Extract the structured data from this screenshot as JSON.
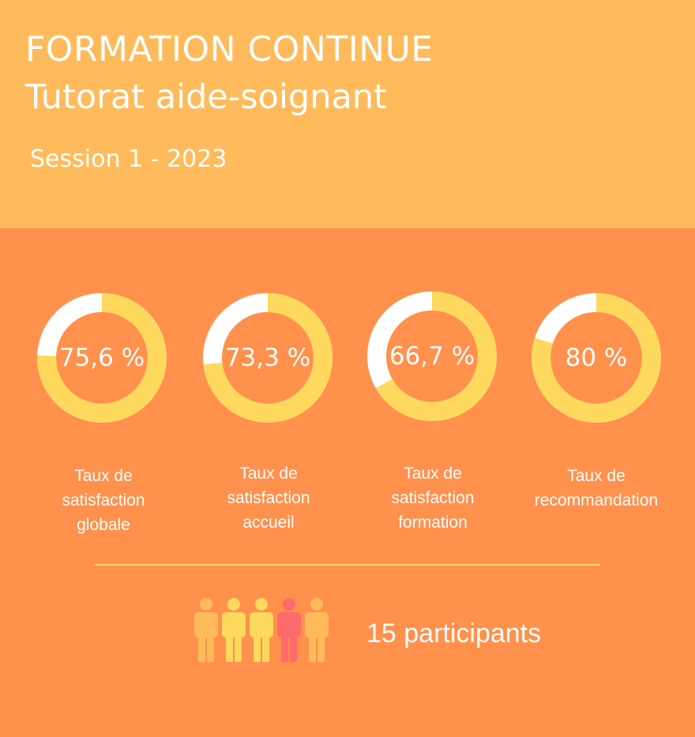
{
  "header": {
    "title": "FORMATION CONTINUE",
    "subtitle": "Tutorat aide-soignant",
    "session": "Session 1 - 2023"
  },
  "colors": {
    "header_bg": "#FFBB5B",
    "body_bg": "#FF914D",
    "ring_fill": "#FFD95E",
    "ring_rest": "#FFFFFF",
    "person_orange": "#FFBB5B",
    "person_yellow": "#FFD95E",
    "person_pink": "#FF6B6B"
  },
  "chart_data": {
    "type": "pie",
    "variant": "donut",
    "series": [
      {
        "value": 75.6,
        "display": "75,6 %",
        "label_lines": [
          "Taux de",
          "satisfaction",
          "globale"
        ]
      },
      {
        "value": 73.3,
        "display": "73,3 %",
        "label_lines": [
          "Taux de",
          "satisfaction",
          "accueil"
        ]
      },
      {
        "value": 66.7,
        "display": "66,7 %",
        "label_lines": [
          "Taux de",
          "satisfaction",
          "formation"
        ]
      },
      {
        "value": 80,
        "display": "80 %",
        "label_lines": [
          "Taux de",
          "recommandation"
        ]
      }
    ],
    "ylim": [
      0,
      100
    ]
  },
  "participants": {
    "count_label": "15 participants",
    "icons": [
      "person-orange-icon",
      "person-yellow-icon",
      "person-yellow-icon",
      "person-pink-icon",
      "person-orange-icon"
    ]
  }
}
